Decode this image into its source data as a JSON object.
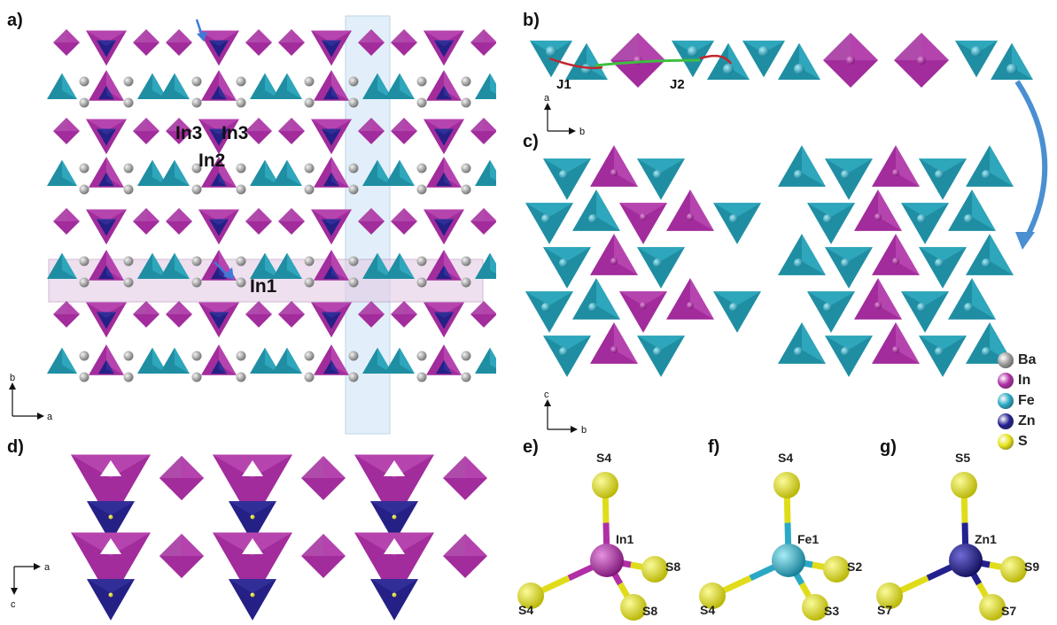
{
  "panels": {
    "a": "a)",
    "b": "b)",
    "c": "c)",
    "d": "d)",
    "e": "e)",
    "f": "f)",
    "g": "g)"
  },
  "axes": {
    "a_panel": {
      "vertical": "b",
      "horizontal": "a"
    },
    "b_panel": {
      "vertical": "a",
      "horizontal": "b"
    },
    "c_panel": {
      "vertical": "c",
      "horizontal": "b"
    },
    "d_panel": {
      "horizontal": "a",
      "vertical": "c"
    }
  },
  "labels_a": {
    "in3_left": "In3",
    "in3_right": "In3",
    "in2": "In2",
    "in1": "In1"
  },
  "labels_b": {
    "j1": "J1",
    "j2": "J2"
  },
  "legend": [
    {
      "label": "Ba",
      "color": "#9a9a9a"
    },
    {
      "label": "In",
      "color": "#b02fa6"
    },
    {
      "label": "Fe",
      "color": "#2aa8c4"
    },
    {
      "label": "Zn",
      "color": "#23208f"
    },
    {
      "label": "S",
      "color": "#e6e21a"
    }
  ],
  "coordination": {
    "e": {
      "center": "In1",
      "top": "S4",
      "left": "S4",
      "right": "S8",
      "bottom": "S8",
      "color": "#b02fa6"
    },
    "f": {
      "center": "Fe1",
      "top": "S4",
      "left": "S4",
      "right": "S2",
      "bottom": "S3",
      "color": "#2aa8c4"
    },
    "g": {
      "center": "Zn1",
      "top": "S5",
      "left": "S7",
      "right": "S9",
      "bottom": "S7",
      "color": "#23208f"
    }
  },
  "colors": {
    "in": "#a22c9c",
    "in_light": "#c65ac0",
    "fe": "#1f8ea3",
    "fe_light": "#3bb9cf",
    "zn": "#242085",
    "s": "#e6e21a",
    "ba": "#9a9a9a"
  }
}
